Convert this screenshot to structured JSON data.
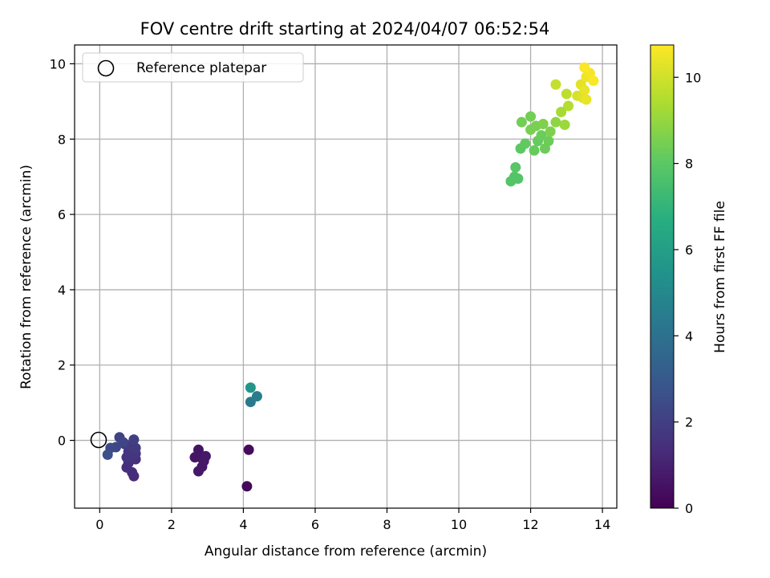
{
  "chart_data": {
    "type": "scatter",
    "title": "FOV centre drift starting at 2024/04/07 06:52:54",
    "xlabel": "Angular distance from reference (arcmin)",
    "ylabel": "Rotation from reference (arcmin)",
    "xlim": [
      -0.7,
      14.4
    ],
    "ylim": [
      -1.8,
      10.5
    ],
    "xticks": [
      0,
      2,
      4,
      6,
      8,
      10,
      12,
      14
    ],
    "yticks": [
      0,
      2,
      4,
      6,
      8,
      10
    ],
    "grid": true,
    "legend": {
      "placement": "upper-left",
      "entries": [
        {
          "label": "Reference platepar",
          "marker": "open-circle"
        }
      ]
    },
    "reference_point": {
      "x": 0,
      "y": 0
    },
    "colorbar": {
      "label": "Hours from first FF file",
      "colormap": "viridis",
      "range": [
        0,
        10.75
      ],
      "ticks": [
        0,
        2,
        4,
        6,
        8,
        10
      ]
    },
    "points": [
      {
        "x": 4.1,
        "y": -1.22,
        "c": 0.2
      },
      {
        "x": 4.15,
        "y": -0.25,
        "c": 0.3
      },
      {
        "x": 2.75,
        "y": -0.25,
        "c": 0.6
      },
      {
        "x": 2.65,
        "y": -0.45,
        "c": 0.6
      },
      {
        "x": 2.8,
        "y": -0.45,
        "c": 0.6
      },
      {
        "x": 2.95,
        "y": -0.42,
        "c": 0.7
      },
      {
        "x": 2.85,
        "y": -0.7,
        "c": 0.7
      },
      {
        "x": 2.75,
        "y": -0.82,
        "c": 0.7
      },
      {
        "x": 2.9,
        "y": -0.55,
        "c": 0.7
      },
      {
        "x": 0.95,
        "y": -0.95,
        "c": 1.3
      },
      {
        "x": 0.9,
        "y": -0.85,
        "c": 1.3
      },
      {
        "x": 0.75,
        "y": -0.72,
        "c": 1.4
      },
      {
        "x": 0.8,
        "y": -0.6,
        "c": 1.4
      },
      {
        "x": 0.85,
        "y": -0.5,
        "c": 1.5
      },
      {
        "x": 1.0,
        "y": -0.5,
        "c": 1.5
      },
      {
        "x": 0.75,
        "y": -0.45,
        "c": 1.6
      },
      {
        "x": 0.9,
        "y": -0.4,
        "c": 1.6
      },
      {
        "x": 1.0,
        "y": -0.35,
        "c": 1.7
      },
      {
        "x": 0.8,
        "y": -0.3,
        "c": 1.7
      },
      {
        "x": 1.0,
        "y": -0.2,
        "c": 1.8
      },
      {
        "x": 0.85,
        "y": -0.15,
        "c": 1.8
      },
      {
        "x": 0.7,
        "y": -0.1,
        "c": 1.9
      },
      {
        "x": 0.95,
        "y": 0.02,
        "c": 2.0
      },
      {
        "x": 0.55,
        "y": 0.08,
        "c": 2.1
      },
      {
        "x": 0.65,
        "y": -0.05,
        "c": 2.2
      },
      {
        "x": 0.45,
        "y": -0.18,
        "c": 2.3
      },
      {
        "x": 0.3,
        "y": -0.2,
        "c": 2.4
      },
      {
        "x": 0.22,
        "y": -0.38,
        "c": 2.6
      },
      {
        "x": 4.2,
        "y": 1.02,
        "c": 4.3
      },
      {
        "x": 4.38,
        "y": 1.17,
        "c": 4.5
      },
      {
        "x": 4.2,
        "y": 1.4,
        "c": 5.6
      },
      {
        "x": 11.45,
        "y": 6.88,
        "c": 7.8
      },
      {
        "x": 11.55,
        "y": 7.0,
        "c": 7.8
      },
      {
        "x": 11.65,
        "y": 6.95,
        "c": 7.8
      },
      {
        "x": 11.58,
        "y": 7.25,
        "c": 7.9
      },
      {
        "x": 11.72,
        "y": 7.75,
        "c": 8.0
      },
      {
        "x": 11.85,
        "y": 7.88,
        "c": 8.1
      },
      {
        "x": 12.1,
        "y": 7.7,
        "c": 8.2
      },
      {
        "x": 12.2,
        "y": 7.95,
        "c": 8.2
      },
      {
        "x": 12.4,
        "y": 7.75,
        "c": 8.3
      },
      {
        "x": 12.5,
        "y": 7.95,
        "c": 8.3
      },
      {
        "x": 12.3,
        "y": 8.1,
        "c": 8.3
      },
      {
        "x": 11.75,
        "y": 8.45,
        "c": 8.4
      },
      {
        "x": 12.0,
        "y": 8.6,
        "c": 8.4
      },
      {
        "x": 12.0,
        "y": 8.25,
        "c": 8.5
      },
      {
        "x": 12.15,
        "y": 8.35,
        "c": 8.5
      },
      {
        "x": 12.35,
        "y": 8.4,
        "c": 8.6
      },
      {
        "x": 12.55,
        "y": 8.2,
        "c": 8.6
      },
      {
        "x": 12.7,
        "y": 8.45,
        "c": 8.9
      },
      {
        "x": 12.95,
        "y": 8.38,
        "c": 9.1
      },
      {
        "x": 12.85,
        "y": 8.72,
        "c": 9.3
      },
      {
        "x": 13.05,
        "y": 8.88,
        "c": 9.5
      },
      {
        "x": 13.0,
        "y": 9.2,
        "c": 9.7
      },
      {
        "x": 12.7,
        "y": 9.45,
        "c": 9.8
      },
      {
        "x": 13.3,
        "y": 9.15,
        "c": 10.1
      },
      {
        "x": 13.45,
        "y": 9.1,
        "c": 10.2
      },
      {
        "x": 13.4,
        "y": 9.45,
        "c": 10.3
      },
      {
        "x": 13.5,
        "y": 9.3,
        "c": 10.4
      },
      {
        "x": 13.55,
        "y": 9.05,
        "c": 10.4
      },
      {
        "x": 13.55,
        "y": 9.65,
        "c": 10.5
      },
      {
        "x": 13.65,
        "y": 9.75,
        "c": 10.6
      },
      {
        "x": 13.75,
        "y": 9.55,
        "c": 10.7
      },
      {
        "x": 13.5,
        "y": 9.9,
        "c": 10.7
      }
    ]
  }
}
